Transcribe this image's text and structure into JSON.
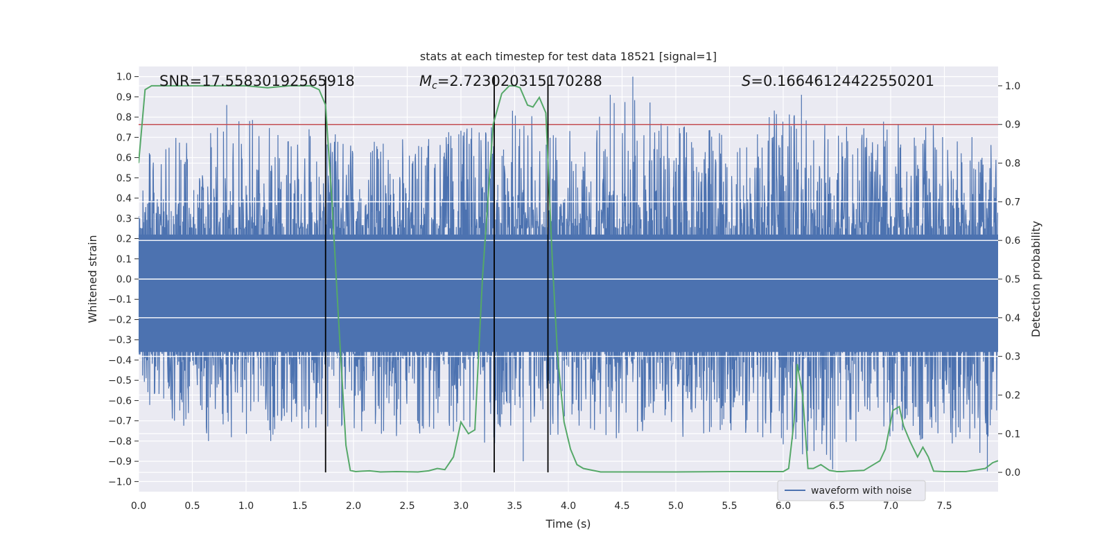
{
  "chart_data": {
    "type": "line",
    "title": "stats at each timestep for test data 18521 [signal=1]",
    "xlabel": "Time (s)",
    "ylabel": "Whitened strain",
    "ylabel_right": "Detection probability",
    "xlim": [
      0,
      8
    ],
    "ylim": [
      -1.05,
      1.05
    ],
    "ylim_right": [
      -0.05,
      1.05
    ],
    "x_ticks": [
      "0.0",
      "0.5",
      "1.0",
      "1.5",
      "2.0",
      "2.5",
      "3.0",
      "3.5",
      "4.0",
      "4.5",
      "5.0",
      "5.5",
      "6.0",
      "6.5",
      "7.0",
      "7.5"
    ],
    "y_ticks": [
      "−1.0",
      "−0.9",
      "−0.8",
      "−0.7",
      "−0.6",
      "−0.5",
      "−0.4",
      "−0.3",
      "−0.2",
      "−0.1",
      "0.0",
      "0.1",
      "0.2",
      "0.3",
      "0.4",
      "0.5",
      "0.6",
      "0.7",
      "0.8",
      "0.9",
      "1.0"
    ],
    "y_right_ticks": [
      "0.0",
      "0.1",
      "0.2",
      "0.3",
      "0.4",
      "0.5",
      "0.6",
      "0.7",
      "0.8",
      "0.9",
      "1.0"
    ],
    "grid": true,
    "legend_position": "lower-right",
    "annotations": {
      "snr": "SNR=17.55830192565918",
      "mc_symbol": "M",
      "mc_sub": "c",
      "mc_value": "=2.723020315170288",
      "s_symbol": "S",
      "s_value": "=0.16646124422550201"
    },
    "colors": {
      "waveform": "#4c72b0",
      "probability": "#55a868",
      "threshold": "#c44e52",
      "vlines": "#000000",
      "background": "#eaeaf2"
    },
    "vertical_lines_x": [
      1.74,
      3.31,
      3.81
    ],
    "threshold_probability": 0.9,
    "series": [
      {
        "name": "waveform with noise",
        "axis": "left",
        "description_envelope": {
          "x": [
            0.0,
            0.5,
            1.0,
            1.5,
            2.0,
            2.5,
            3.0,
            3.5,
            4.0,
            4.5,
            5.0,
            5.5,
            6.0,
            6.5,
            7.0,
            7.5,
            8.0
          ],
          "upper": [
            0.6,
            0.75,
            0.8,
            0.75,
            0.7,
            0.7,
            0.75,
            0.85,
            0.75,
            0.95,
            0.8,
            0.75,
            0.85,
            0.75,
            0.8,
            0.75,
            0.7
          ],
          "lower": [
            -0.6,
            -0.75,
            -0.8,
            -0.75,
            -0.75,
            -0.8,
            -0.75,
            -0.9,
            -0.75,
            -0.8,
            -0.8,
            -0.75,
            -0.85,
            -0.9,
            -0.8,
            -0.8,
            -0.95
          ]
        },
        "peaks": [
          {
            "x": 0.82,
            "y": 0.86
          },
          {
            "x": 4.39,
            "y": 0.91
          },
          {
            "x": 4.6,
            "y": 1.0
          },
          {
            "x": 6.17,
            "y": 0.91
          },
          {
            "x": 5.87,
            "y": 0.8
          },
          {
            "x": 0.65,
            "y": -0.8
          },
          {
            "x": 1.23,
            "y": -0.8
          },
          {
            "x": 3.58,
            "y": -0.9
          },
          {
            "x": 6.46,
            "y": -0.94
          },
          {
            "x": 7.9,
            "y": -0.95
          }
        ]
      },
      {
        "name": "",
        "axis": "right",
        "x": [
          0.0,
          0.06,
          0.12,
          0.2,
          0.4,
          0.6,
          0.8,
          1.0,
          1.2,
          1.4,
          1.6,
          1.68,
          1.74,
          1.8,
          1.86,
          1.93,
          1.97,
          2.02,
          2.08,
          2.15,
          2.25,
          2.4,
          2.6,
          2.7,
          2.78,
          2.85,
          2.93,
          3.0,
          3.07,
          3.13,
          3.2,
          3.3,
          3.38,
          3.45,
          3.5,
          3.55,
          3.62,
          3.67,
          3.73,
          3.79,
          3.85,
          3.9,
          3.96,
          4.02,
          4.08,
          4.14,
          4.3,
          4.5,
          5.0,
          5.5,
          6.0,
          6.05,
          6.1,
          6.13,
          6.18,
          6.23,
          6.28,
          6.35,
          6.43,
          6.5,
          6.55,
          6.6,
          6.75,
          6.9,
          6.95,
          7.02,
          7.08,
          7.12,
          7.18,
          7.25,
          7.3,
          7.35,
          7.4,
          7.5,
          7.7,
          7.88,
          7.95,
          8.0
        ],
        "y": [
          0.8,
          0.99,
          1.0,
          1.0,
          1.0,
          1.0,
          1.0,
          1.0,
          0.995,
          1.0,
          1.0,
          0.99,
          0.95,
          0.7,
          0.4,
          0.07,
          0.005,
          0.002,
          0.003,
          0.004,
          0.001,
          0.002,
          0.001,
          0.004,
          0.01,
          0.007,
          0.04,
          0.13,
          0.1,
          0.11,
          0.5,
          0.9,
          0.98,
          1.0,
          1.0,
          0.995,
          0.95,
          0.945,
          0.97,
          0.93,
          0.55,
          0.3,
          0.13,
          0.06,
          0.02,
          0.01,
          0.001,
          0.001,
          0.001,
          0.002,
          0.002,
          0.01,
          0.13,
          0.28,
          0.2,
          0.01,
          0.01,
          0.02,
          0.005,
          0.002,
          0.002,
          0.003,
          0.005,
          0.03,
          0.06,
          0.16,
          0.17,
          0.12,
          0.08,
          0.04,
          0.065,
          0.04,
          0.003,
          0.002,
          0.002,
          0.01,
          0.025,
          0.03
        ]
      }
    ]
  }
}
